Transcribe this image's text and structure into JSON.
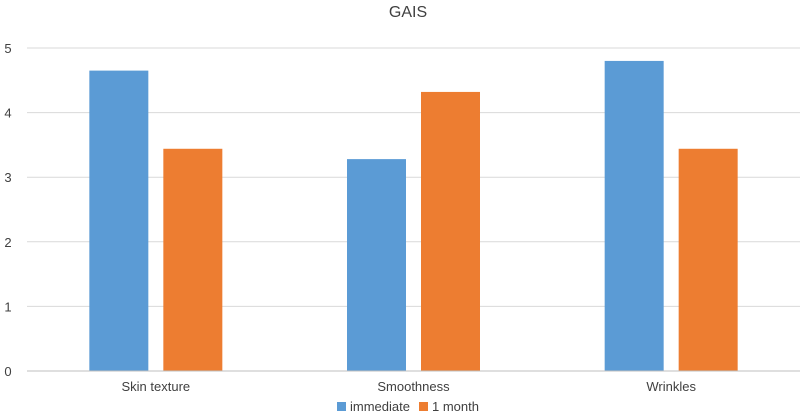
{
  "chart_data": {
    "type": "bar",
    "title": "GAIS",
    "xlabel": "",
    "ylabel": "",
    "categories": [
      "Skin texture",
      "Smoothness",
      "Wrinkles"
    ],
    "series": [
      {
        "name": "immediate",
        "color": "#5b9bd5",
        "values": [
          4.65,
          3.28,
          4.8
        ]
      },
      {
        "name": "1 month",
        "color": "#ed7d31",
        "values": [
          3.44,
          4.32,
          3.44
        ]
      }
    ],
    "ylim": [
      0,
      5
    ],
    "yticks": [
      0,
      1,
      2,
      3,
      4,
      5
    ],
    "grid": true,
    "legend_position": "bottom"
  }
}
